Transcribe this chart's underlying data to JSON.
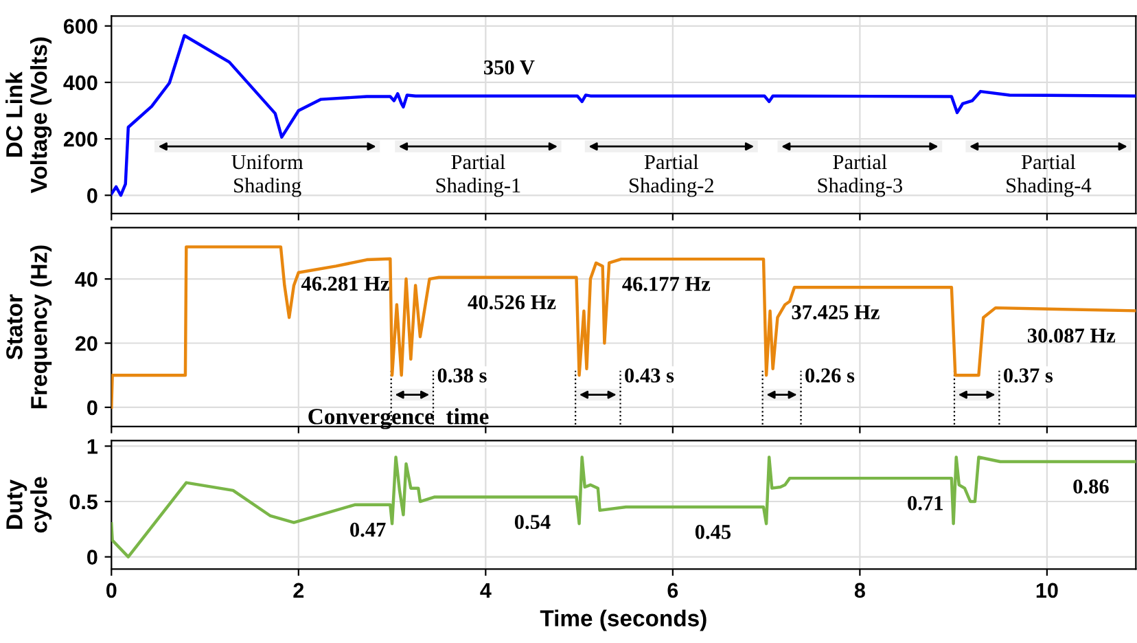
{
  "chart_data": [
    {
      "type": "line",
      "ylabel": "DC Link\nVoltage (Volts)",
      "xlim": [
        0,
        10.95
      ],
      "xticks": [
        0,
        2,
        4,
        6,
        8,
        10
      ],
      "ylim": [
        -65,
        635
      ],
      "yticks": [
        0,
        200,
        400,
        600
      ],
      "grid": true,
      "tick_labels": "y",
      "series": [
        {
          "color": "#0000ff",
          "x": [
            0,
            0.05,
            0.1,
            0.15,
            0.18,
            0.43,
            0.62,
            0.78,
            1.26,
            1.75,
            1.82,
            2.0,
            2.24,
            2.73,
            2.98,
            3.02,
            3.06,
            3.1,
            3.12,
            3.16,
            3.25,
            4.98,
            5.03,
            5.07,
            5.12,
            6.98,
            7.03,
            7.07,
            7.12,
            8.98,
            9.04,
            9.1,
            9.2,
            9.29,
            9.6,
            10.95
          ],
          "values": [
            5,
            30,
            0,
            40,
            241,
            315,
            398,
            566,
            472,
            290,
            206,
            300,
            340,
            350,
            350,
            335,
            360,
            325,
            313,
            355,
            352,
            352,
            332,
            355,
            352,
            352,
            332,
            352,
            352,
            350,
            293,
            325,
            335,
            368,
            355,
            352
          ]
        }
      ],
      "bands": [
        {
          "axis": "x",
          "from": 0.46,
          "to": 2.87,
          "label": "Uniform\nShading",
          "color": "#000000"
        },
        {
          "axis": "x",
          "from": 3.03,
          "to": 4.81,
          "label": "Partial\nShading-1",
          "color": "#000000"
        },
        {
          "axis": "x",
          "from": 5.06,
          "to": 6.91,
          "label": "Partial\nShading-2",
          "color": "#000000"
        },
        {
          "axis": "x",
          "from": 7.12,
          "to": 8.88,
          "label": "Partial\nShading-3",
          "color": "#000000"
        },
        {
          "axis": "x",
          "from": 9.13,
          "to": 10.9,
          "label": "Partial\nShading-4",
          "color": "#000000"
        }
      ],
      "annotations": [
        {
          "text": "350 V",
          "x": 4.25,
          "y": 352
        }
      ]
    },
    {
      "type": "line",
      "ylabel": "Stator\nFrequency (Hz)",
      "xlim": [
        0,
        10.95
      ],
      "xticks": [
        0,
        2,
        4,
        6,
        8,
        10
      ],
      "ylim": [
        -6,
        56
      ],
      "yticks": [
        0,
        20,
        40
      ],
      "grid": true,
      "tick_labels": "y",
      "series": [
        {
          "color": "#e8870f",
          "x": [
            0,
            0.01,
            0.79,
            0.8,
            1.81,
            1.85,
            1.9,
            1.95,
            2.0,
            2.4,
            2.73,
            2.98,
            3.0,
            3.05,
            3.1,
            3.15,
            3.2,
            3.25,
            3.3,
            3.4,
            3.5,
            4.97,
            5.0,
            5.05,
            5.08,
            5.12,
            5.18,
            5.25,
            5.27,
            5.32,
            5.45,
            6.97,
            7.0,
            7.04,
            7.07,
            7.12,
            7.2,
            7.25,
            7.3,
            8.98,
            9.02,
            9.27,
            9.32,
            9.45,
            10.95
          ],
          "values": [
            0,
            10,
            10,
            50,
            50,
            38,
            28,
            38,
            42,
            44,
            46,
            46.3,
            10,
            32,
            10,
            40,
            15,
            38,
            22,
            40,
            40.5,
            40.5,
            10,
            30,
            12,
            40,
            45,
            44,
            20,
            45,
            46.2,
            46.2,
            10,
            30,
            12,
            28,
            32,
            33,
            37.4,
            37.4,
            10,
            10,
            28,
            31,
            30.1
          ]
        }
      ],
      "bands": [
        {
          "axis": "x",
          "from": 2.99,
          "to": 3.44,
          "label": "0.38 s",
          "color": "#000000"
        },
        {
          "axis": "x",
          "from": 4.96,
          "to": 5.44,
          "label": "0.43 s",
          "color": "#000000"
        },
        {
          "axis": "x",
          "from": 6.96,
          "to": 7.37,
          "label": "0.26 s",
          "color": "#000000"
        },
        {
          "axis": "x",
          "from": 9.01,
          "to": 9.49,
          "label": "0.37 s",
          "color": "#000000"
        }
      ],
      "ref_lines": [
        {
          "axis": "x",
          "value": 2.99,
          "color": "#000000",
          "line_style": "dotted"
        },
        {
          "axis": "x",
          "value": 3.44,
          "color": "#000000",
          "line_style": "dotted"
        },
        {
          "axis": "x",
          "value": 4.96,
          "color": "#000000",
          "line_style": "dotted"
        },
        {
          "axis": "x",
          "value": 5.44,
          "color": "#000000",
          "line_style": "dotted"
        },
        {
          "axis": "x",
          "value": 6.96,
          "color": "#000000",
          "line_style": "dotted"
        },
        {
          "axis": "x",
          "value": 7.37,
          "color": "#000000",
          "line_style": "dotted"
        },
        {
          "axis": "x",
          "value": 9.01,
          "color": "#000000",
          "line_style": "dotted"
        },
        {
          "axis": "x",
          "value": 9.49,
          "color": "#000000",
          "line_style": "dotted"
        }
      ],
      "annotations": [
        {
          "text": "46.281 Hz",
          "x": 2.5,
          "y": 46.3
        },
        {
          "text": "40.526 Hz",
          "x": 4.28,
          "y": 40.5
        },
        {
          "text": "46.177 Hz",
          "x": 5.93,
          "y": 46.2
        },
        {
          "text": "37.425 Hz",
          "x": 7.74,
          "y": 37.4
        },
        {
          "text": "30.087 Hz",
          "x": 10.26,
          "y": 30.1
        },
        "Convergence  time"
      ]
    },
    {
      "type": "line",
      "ylabel": "Duty\ncycle",
      "xlabel": "Time (seconds)",
      "xlim": [
        0,
        10.95
      ],
      "xticks": [
        0,
        2,
        4,
        6,
        8,
        10
      ],
      "ylim": [
        -0.11,
        1.05
      ],
      "yticks": [
        0,
        0.5,
        1
      ],
      "grid": true,
      "series": [
        {
          "color": "#7ab648",
          "x": [
            0,
            0.01,
            0.18,
            0.8,
            1.3,
            1.7,
            1.95,
            2.6,
            2.98,
            3.0,
            3.04,
            3.08,
            3.12,
            3.15,
            3.2,
            3.28,
            3.3,
            3.45,
            4.97,
            5.0,
            5.03,
            5.06,
            5.12,
            5.2,
            5.22,
            5.5,
            6.97,
            7.0,
            7.03,
            7.06,
            7.15,
            7.2,
            7.25,
            8.98,
            9.0,
            9.03,
            9.06,
            9.12,
            9.18,
            9.23,
            9.27,
            9.5,
            10.95
          ],
          "values": [
            0.3,
            0.15,
            0.0,
            0.67,
            0.6,
            0.37,
            0.31,
            0.47,
            0.47,
            0.3,
            0.9,
            0.6,
            0.38,
            0.84,
            0.62,
            0.62,
            0.5,
            0.54,
            0.54,
            0.3,
            0.9,
            0.63,
            0.65,
            0.62,
            0.42,
            0.45,
            0.45,
            0.3,
            0.9,
            0.62,
            0.63,
            0.65,
            0.71,
            0.71,
            0.3,
            0.9,
            0.65,
            0.62,
            0.5,
            0.5,
            0.9,
            0.86,
            0.86
          ]
        }
      ],
      "annotations": [
        {
          "text": "0.47",
          "x": 2.74,
          "y": 0.47
        },
        {
          "text": "0.54",
          "x": 4.5,
          "y": 0.54
        },
        {
          "text": "0.45",
          "x": 6.43,
          "y": 0.45
        },
        {
          "text": "0.71",
          "x": 8.7,
          "y": 0.71
        },
        {
          "text": "0.86",
          "x": 10.47,
          "y": 0.86
        }
      ]
    }
  ]
}
